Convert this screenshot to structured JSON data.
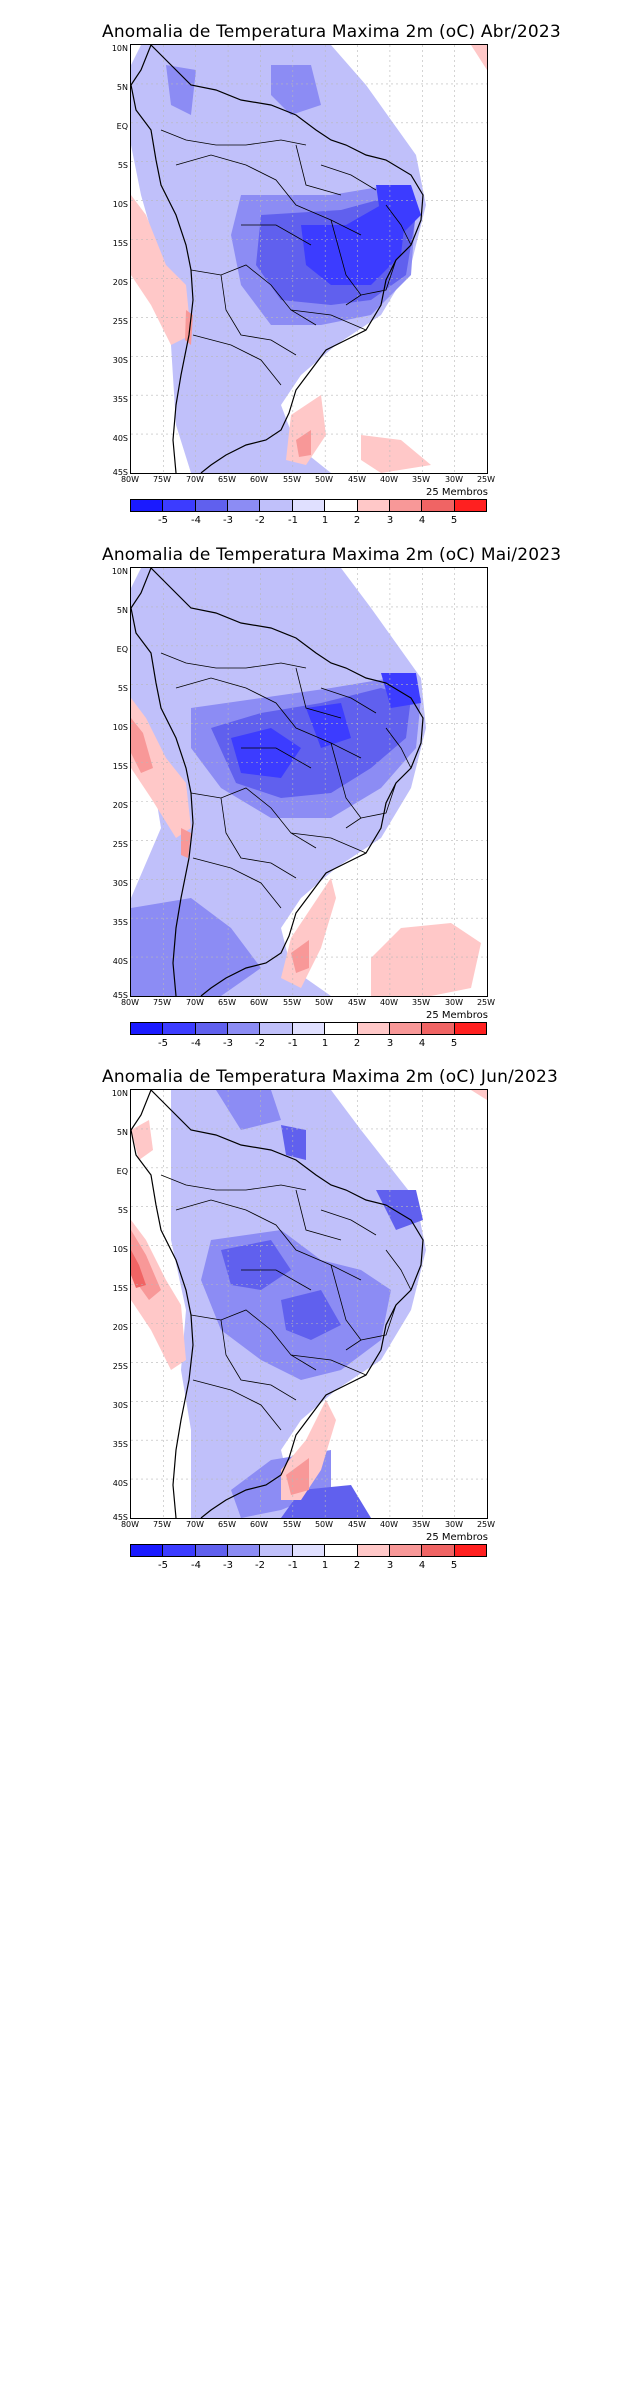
{
  "panels": [
    {
      "title": "Anomalia de Temperatura Maxima 2m (oC) Abr/2023"
    },
    {
      "title": "Anomalia de Temperatura Maxima 2m (oC) Mai/2023"
    },
    {
      "title": "Anomalia de Temperatura Maxima 2m (oC) Jun/2023"
    }
  ],
  "lat_labels": [
    "10N",
    "5N",
    "EQ",
    "5S",
    "10S",
    "15S",
    "20S",
    "25S",
    "30S",
    "35S",
    "40S",
    "45S"
  ],
  "lon_labels": [
    "80W",
    "75W",
    "70W",
    "65W",
    "60W",
    "55W",
    "50W",
    "45W",
    "40W",
    "35W",
    "30W",
    "25W"
  ],
  "members_label": "25 Membros",
  "colorbar": {
    "labels": [
      "-5",
      "-4",
      "-3",
      "-2",
      "-1",
      "1",
      "2",
      "3",
      "4",
      "5"
    ],
    "colors": [
      "#1a1aff",
      "#3c3cff",
      "#6060ee",
      "#8c8cf4",
      "#c0c0fa",
      "#ffffff",
      "#ffc8c8",
      "#f89898",
      "#f06464",
      "#ff2020",
      "#ff0000"
    ]
  },
  "legend_colors": {
    "blue_1": "#c0c0fa",
    "blue_2": "#8c8cf4",
    "blue_3": "#6060ee",
    "blue_4": "#3c3cff",
    "red_1": "#ffc8c8",
    "red_2": "#f89898",
    "red_3": "#f06464"
  }
}
